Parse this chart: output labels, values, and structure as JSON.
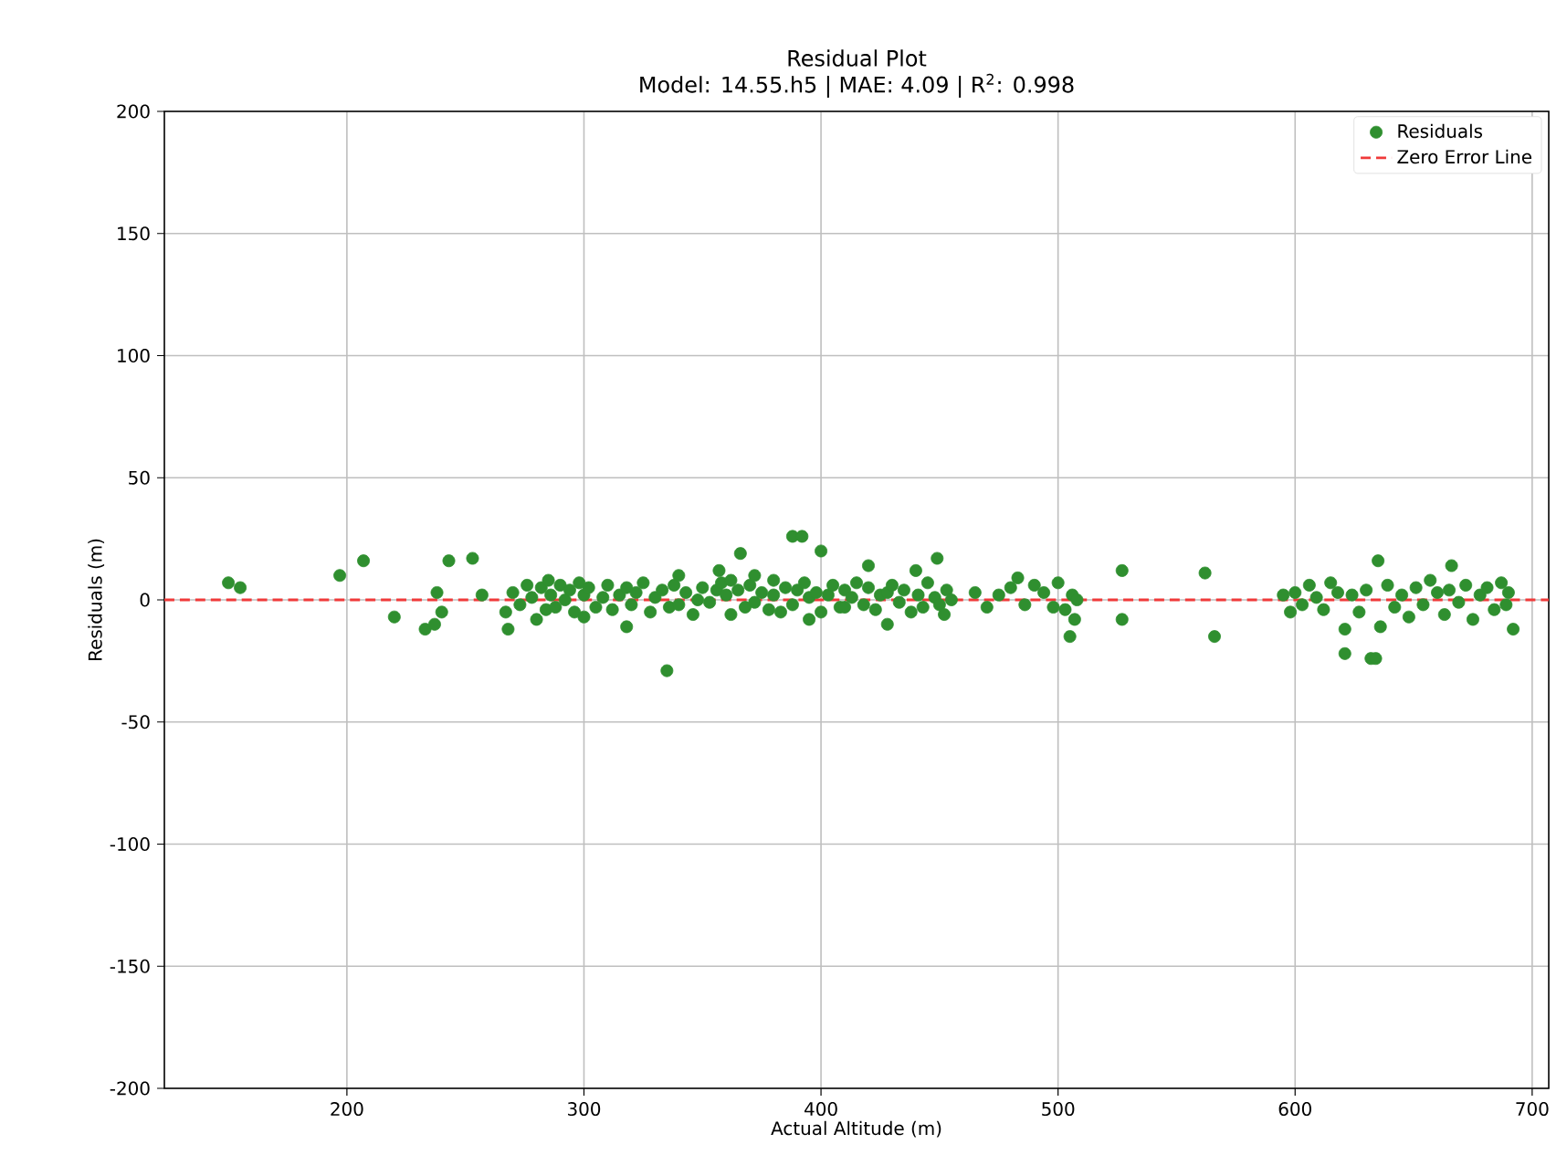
{
  "chart_data": {
    "type": "scatter",
    "title": "Residual Plot",
    "subtitle": "Model: 14.55.h5 | MAE: 4.09 | R$^{2}$: 0.998",
    "xlabel": "Actual Altitude (m)",
    "ylabel": "Residuals (m)",
    "xlim": [
      123,
      707
    ],
    "ylim": [
      -200,
      200
    ],
    "xticks": [
      200,
      300,
      400,
      500,
      600,
      700
    ],
    "yticks": [
      -200,
      -150,
      -100,
      -50,
      0,
      50,
      100,
      150,
      200
    ],
    "grid": true,
    "legend": "top right",
    "series": [
      {
        "name": "Residuals",
        "color": "#2f8f2f",
        "x": [
          150,
          155,
          197,
          207,
          220,
          233,
          237,
          238,
          240,
          243,
          253,
          257,
          267,
          268,
          270,
          273,
          276,
          278,
          280,
          282,
          284,
          285,
          286,
          288,
          290,
          292,
          294,
          296,
          298,
          300,
          300,
          302,
          305,
          308,
          310,
          312,
          315,
          318,
          318,
          320,
          322,
          325,
          328,
          330,
          333,
          335,
          336,
          338,
          340,
          340,
          343,
          346,
          348,
          350,
          353,
          356,
          357,
          358,
          360,
          362,
          362,
          365,
          366,
          368,
          370,
          372,
          372,
          375,
          378,
          380,
          380,
          383,
          385,
          388,
          388,
          390,
          392,
          393,
          395,
          395,
          398,
          400,
          400,
          403,
          405,
          408,
          410,
          410,
          413,
          415,
          418,
          420,
          420,
          423,
          425,
          428,
          428,
          430,
          433,
          435,
          438,
          440,
          441,
          443,
          445,
          448,
          449,
          450,
          452,
          453,
          455,
          465,
          470,
          475,
          480,
          483,
          486,
          490,
          494,
          498,
          500,
          503,
          505,
          506,
          507,
          508,
          527,
          527,
          562,
          566,
          595,
          598,
          600,
          603,
          606,
          609,
          612,
          615,
          618,
          621,
          621,
          624,
          627,
          630,
          632,
          634,
          635,
          636,
          639,
          642,
          645,
          648,
          651,
          654,
          657,
          660,
          663,
          665,
          666,
          669,
          672,
          675,
          678,
          681,
          684,
          687,
          689,
          690,
          692
        ],
        "values": [
          7,
          5,
          10,
          16,
          -7,
          -12,
          -10,
          3,
          -5,
          16,
          17,
          2,
          -5,
          -12,
          3,
          -2,
          6,
          1,
          -8,
          5,
          -4,
          8,
          2,
          -3,
          6,
          0,
          4,
          -5,
          7,
          -7,
          2,
          5,
          -3,
          1,
          6,
          -4,
          2,
          -11,
          5,
          -2,
          3,
          7,
          -5,
          1,
          4,
          -29,
          -3,
          6,
          10,
          -2,
          3,
          -6,
          0,
          5,
          -1,
          4,
          12,
          7,
          2,
          -6,
          8,
          4,
          19,
          -3,
          6,
          10,
          -1,
          3,
          -4,
          8,
          2,
          -5,
          5,
          26,
          -2,
          4,
          26,
          7,
          -8,
          1,
          3,
          20,
          -5,
          2,
          6,
          -3,
          -3,
          4,
          1,
          7,
          -2,
          14,
          5,
          -4,
          2,
          -10,
          3,
          6,
          -1,
          4,
          -5,
          12,
          2,
          -3,
          7,
          1,
          17,
          -2,
          -6,
          4,
          0,
          3,
          -3,
          2,
          5,
          9,
          -2,
          6,
          3,
          -3,
          7,
          -4,
          -15,
          2,
          -8,
          0,
          12,
          -8,
          11,
          -15,
          2,
          -5,
          3,
          -2,
          6,
          1,
          -4,
          7,
          3,
          -12,
          -22,
          2,
          -5,
          4,
          -24,
          -24,
          16,
          -11,
          6,
          -3,
          2,
          -7,
          5,
          -2,
          8,
          3,
          -6,
          4,
          14,
          -1,
          6,
          -8,
          2,
          5,
          -4,
          7,
          -2,
          3,
          -12
        ]
      }
    ],
    "ref_lines": [
      {
        "axis": "y",
        "value": 0,
        "label": "Zero Error Line",
        "color": "#f03a3a",
        "line_style": "dashed"
      }
    ]
  }
}
